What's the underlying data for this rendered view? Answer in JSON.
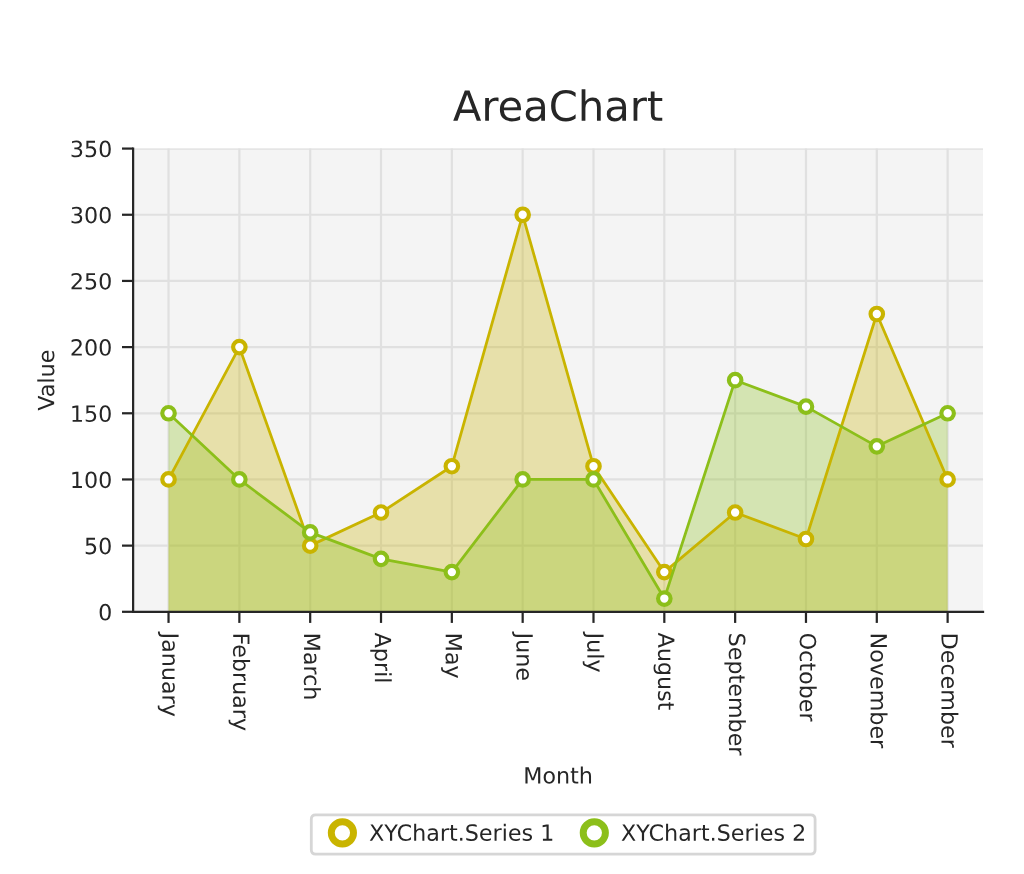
{
  "chart_data": {
    "type": "area",
    "title": "AreaChart",
    "xlabel": "Month",
    "ylabel": "Value",
    "categories": [
      "January",
      "February",
      "March",
      "April",
      "May",
      "June",
      "July",
      "August",
      "September",
      "October",
      "November",
      "December"
    ],
    "series": [
      {
        "name": "XYChart.Series 1",
        "color": "#c9b400",
        "values": [
          100,
          200,
          50,
          75,
          110,
          300,
          110,
          30,
          75,
          55,
          225,
          100
        ]
      },
      {
        "name": "XYChart.Series 2",
        "color": "#8cbf1a",
        "values": [
          150,
          100,
          60,
          40,
          30,
          100,
          100,
          10,
          175,
          155,
          125,
          150
        ]
      }
    ],
    "ylim": [
      0,
      350
    ],
    "yticks": [
      0,
      50,
      100,
      150,
      200,
      250,
      300,
      350
    ],
    "grid": true,
    "legend": "bottom",
    "marker": "circle",
    "line_style": "solid"
  }
}
